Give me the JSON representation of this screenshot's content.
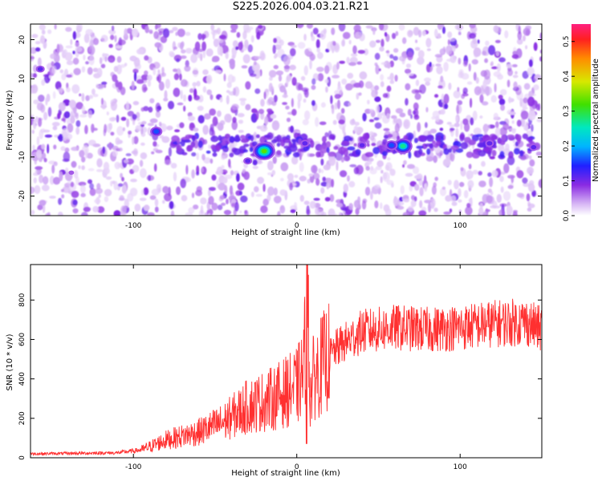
{
  "title": "S225.2026.004.03.21.R21",
  "chart_data": [
    {
      "type": "heatmap",
      "xlabel": "Height of straight line (km)",
      "ylabel": "Frequency (Hz)",
      "xlim": [
        -163,
        150
      ],
      "ylim": [
        -25,
        24
      ],
      "xticks": [
        -100,
        0,
        100
      ],
      "yticks": [
        -20,
        -10,
        0,
        10,
        20
      ],
      "colorbar": {
        "label": "Normalized spectral amplitude",
        "range": [
          0,
          0.55
        ],
        "ticks": [
          0.0,
          0.1,
          0.2,
          0.3,
          0.4,
          0.5
        ]
      },
      "ridge": {
        "frequency_hz": -7,
        "from_height_km": -75,
        "to_height_km": 150
      },
      "peaks": [
        {
          "x": -20,
          "y": -8.5,
          "amplitude": 0.32
        },
        {
          "x": 65,
          "y": -7.2,
          "amplitude": 0.3
        },
        {
          "x": 58,
          "y": -7.0,
          "amplitude": 0.18
        },
        {
          "x": -86,
          "y": -3.5,
          "amplitude": 0.15
        },
        {
          "x": -157,
          "y": 12.5,
          "amplitude": 0.14
        },
        {
          "x": 145,
          "y": -7.5,
          "amplitude": 0.13
        },
        {
          "x": 118,
          "y": -6.5,
          "amplitude": 0.12
        },
        {
          "x": 40,
          "y": -7.0,
          "amplitude": 0.12
        },
        {
          "x": -30,
          "y": -11.0,
          "amplitude": 0.1
        },
        {
          "x": 5,
          "y": -6.5,
          "amplitude": 0.1
        },
        {
          "x": -138,
          "y": -14.0,
          "amplitude": 0.09
        }
      ]
    },
    {
      "type": "line",
      "xlabel": "Height of straight line (km)",
      "ylabel": "SNR (10 * v/v)",
      "xlim": [
        -163,
        150
      ],
      "ylim": [
        0,
        980
      ],
      "xticks": [
        -100,
        0,
        100
      ],
      "yticks": [
        0,
        200,
        400,
        600,
        800
      ],
      "color": "#ff3030",
      "envelope": {
        "x": [
          -163,
          -110,
          -95,
          -80,
          -60,
          -45,
          -30,
          -15,
          0,
          4,
          6,
          7,
          8,
          10,
          15,
          25,
          40,
          60,
          80,
          100,
          120,
          140,
          150
        ],
        "y": [
          20,
          25,
          40,
          90,
          130,
          180,
          260,
          300,
          360,
          430,
          700,
          880,
          300,
          400,
          470,
          560,
          640,
          660,
          650,
          660,
          680,
          690,
          650
        ]
      }
    }
  ]
}
